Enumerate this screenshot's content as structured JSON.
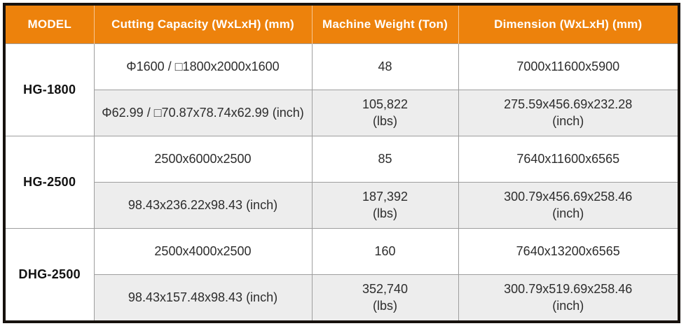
{
  "header": {
    "model": "MODEL",
    "cutting_capacity": "Cutting Capacity (WxLxH) (mm)",
    "machine_weight": "Machine Weight (Ton)",
    "dimension": "Dimension (WxLxH) (mm)"
  },
  "groups": [
    {
      "model": "HG-1800",
      "mm": {
        "cutting": "Φ1600 / □1800x2000x1600",
        "weight": "48",
        "dimension": "7000x11600x5900"
      },
      "inch": {
        "cutting": "Φ62.99 / □70.87x78.74x62.99 (inch)",
        "weight_value": "105,822",
        "weight_unit": "(lbs)",
        "dimension_value": "275.59x456.69x232.28",
        "dimension_unit": "(inch)"
      }
    },
    {
      "model": "HG-2500",
      "mm": {
        "cutting": "2500x6000x2500",
        "weight": "85",
        "dimension": "7640x11600x6565"
      },
      "inch": {
        "cutting": "98.43x236.22x98.43 (inch)",
        "weight_value": "187,392",
        "weight_unit": "(lbs)",
        "dimension_value": "300.79x456.69x258.46",
        "dimension_unit": "(inch)"
      }
    },
    {
      "model": "DHG-2500",
      "mm": {
        "cutting": "2500x4000x2500",
        "weight": "160",
        "dimension": "7640x13200x6565"
      },
      "inch": {
        "cutting": "98.43x157.48x98.43 (inch)",
        "weight_value": "352,740",
        "weight_unit": "(lbs)",
        "dimension_value": "300.79x519.69x258.46",
        "dimension_unit": "(inch)"
      }
    }
  ],
  "colors": {
    "header_bg": "#ED820C",
    "header_text": "#FFFFFF",
    "shaded_row_bg": "#EDEDED",
    "grid_line": "#9E9E9E",
    "outer_border": "#17120E",
    "body_text": "#2D2D2D"
  }
}
